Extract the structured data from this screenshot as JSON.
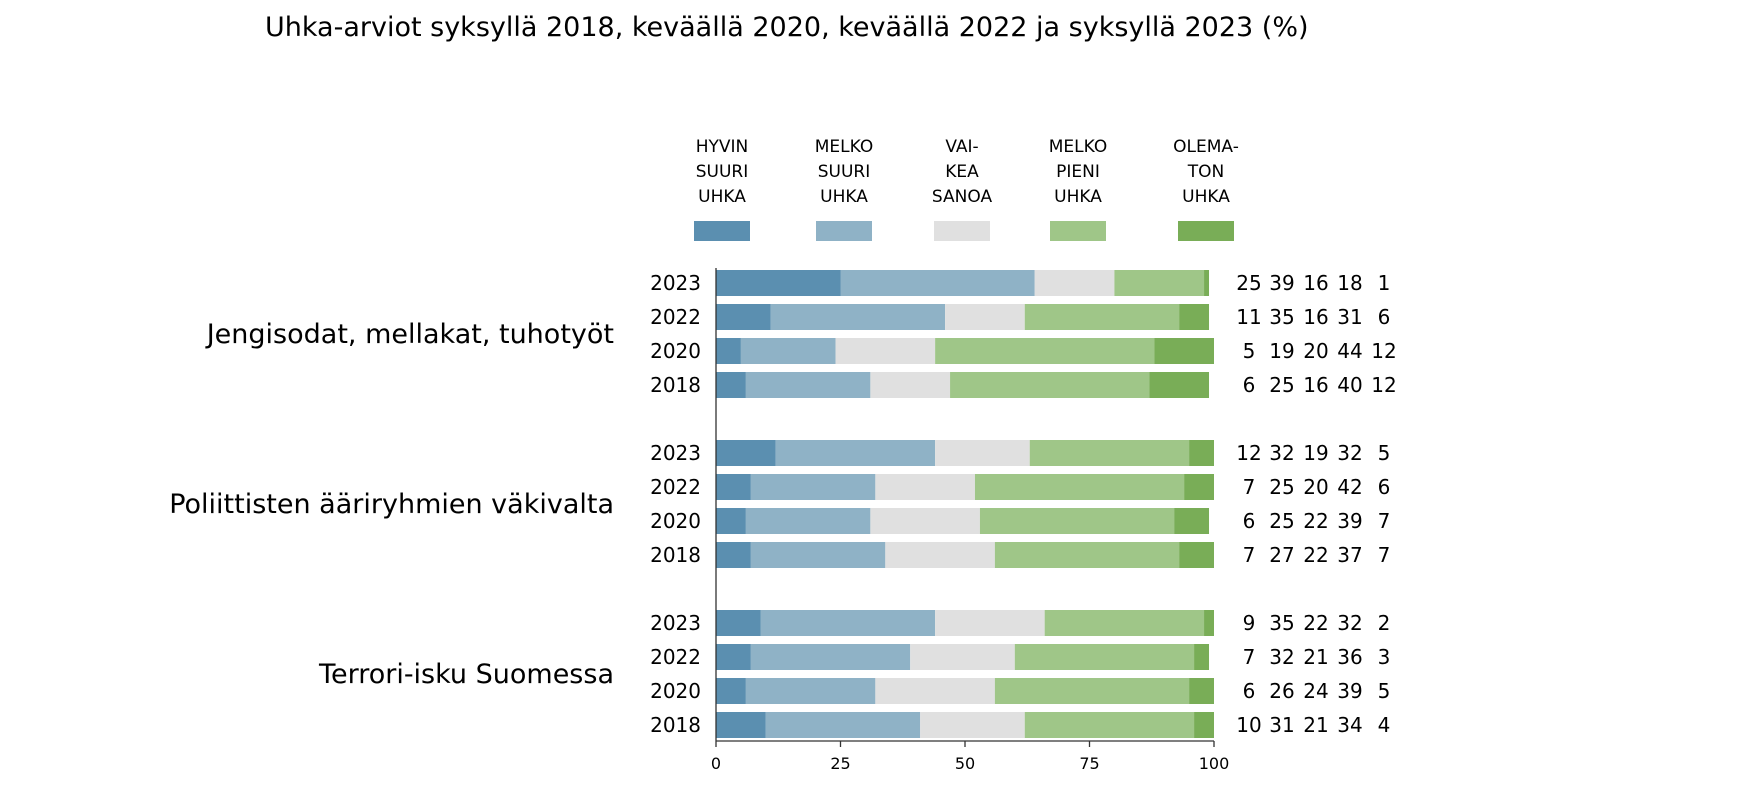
{
  "chart_data": {
    "type": "bar",
    "stacked": true,
    "orientation": "horizontal",
    "title": "Uhka-arviot syksyllä 2018, keväällä 2020, keväällä 2022 ja syksyllä 2023 (%)",
    "xlim": [
      0,
      100
    ],
    "x_ticks": [
      "0",
      "25",
      "50",
      "75",
      "100"
    ],
    "legend": [
      {
        "lines": [
          "HYVIN",
          "SUURI",
          "UHKA"
        ],
        "color": "#5b8fb0"
      },
      {
        "lines": [
          "MELKO",
          "SUURI",
          "UHKA"
        ],
        "color": "#8fb2c6"
      },
      {
        "lines": [
          "VAI-",
          "KEA",
          "SANOA"
        ],
        "color": "#e0e0e0"
      },
      {
        "lines": [
          "MELKO",
          "PIENI",
          "UHKA"
        ],
        "color": "#9fc688"
      },
      {
        "lines": [
          "OLEMA-",
          "TON",
          "UHKA"
        ],
        "color": "#79ad57"
      }
    ],
    "groups": [
      {
        "name": "Jengisodat, mellakat, tuhotyöt",
        "rows": [
          {
            "year": "2023",
            "values": [
              25,
              39,
              16,
              18,
              1
            ]
          },
          {
            "year": "2022",
            "values": [
              11,
              35,
              16,
              31,
              6
            ]
          },
          {
            "year": "2020",
            "values": [
              5,
              19,
              20,
              44,
              12
            ]
          },
          {
            "year": "2018",
            "values": [
              6,
              25,
              16,
              40,
              12
            ]
          }
        ]
      },
      {
        "name": "Poliittisten ääriryhmien väkivalta",
        "rows": [
          {
            "year": "2023",
            "values": [
              12,
              32,
              19,
              32,
              5
            ]
          },
          {
            "year": "2022",
            "values": [
              7,
              25,
              20,
              42,
              6
            ]
          },
          {
            "year": "2020",
            "values": [
              6,
              25,
              22,
              39,
              7
            ]
          },
          {
            "year": "2018",
            "values": [
              7,
              27,
              22,
              37,
              7
            ]
          }
        ]
      },
      {
        "name": "Terrori-isku Suomessa",
        "rows": [
          {
            "year": "2023",
            "values": [
              9,
              35,
              22,
              32,
              2
            ]
          },
          {
            "year": "2022",
            "values": [
              7,
              32,
              21,
              36,
              3
            ]
          },
          {
            "year": "2020",
            "values": [
              6,
              26,
              24,
              39,
              5
            ]
          },
          {
            "year": "2018",
            "values": [
              10,
              31,
              21,
              34,
              4
            ]
          }
        ]
      }
    ]
  }
}
